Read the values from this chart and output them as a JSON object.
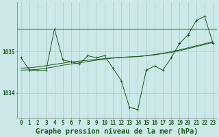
{
  "title": "Graphe pression niveau de la mer (hPa)",
  "background_color": "#cce8e8",
  "grid_color": "#aacccc",
  "line_color": "#1a5c1a",
  "hours": [
    0,
    1,
    2,
    3,
    4,
    5,
    6,
    7,
    8,
    9,
    10,
    11,
    12,
    13,
    14,
    15,
    16,
    17,
    18,
    19,
    20,
    21,
    22,
    23
  ],
  "x_labels": [
    "0",
    "1",
    "2",
    "3",
    "4",
    "5",
    "6",
    "7",
    "8",
    "9",
    "10",
    "11",
    "12",
    "13",
    "14",
    "15",
    "16",
    "17",
    "18",
    "19",
    "20",
    "21",
    "22",
    "23"
  ],
  "main_line": [
    1034.85,
    1034.55,
    1034.55,
    1034.55,
    1035.55,
    1034.8,
    1034.75,
    1034.7,
    1034.9,
    1034.85,
    1034.9,
    1034.6,
    1034.3,
    1033.65,
    1033.6,
    1034.55,
    1034.65,
    1034.55,
    1034.85,
    1035.2,
    1035.4,
    1035.75,
    1035.85,
    1035.2
  ],
  "trend_line1": [
    1034.55,
    1034.56,
    1034.57,
    1034.6,
    1034.63,
    1034.67,
    1034.7,
    1034.73,
    1034.76,
    1034.79,
    1034.82,
    1034.84,
    1034.86,
    1034.87,
    1034.88,
    1034.9,
    1034.92,
    1034.95,
    1034.98,
    1035.02,
    1035.07,
    1035.12,
    1035.17,
    1035.22
  ],
  "trend_line2": [
    1034.6,
    1034.61,
    1034.63,
    1034.66,
    1034.69,
    1034.72,
    1034.75,
    1034.77,
    1034.79,
    1034.81,
    1034.83,
    1034.85,
    1034.86,
    1034.87,
    1034.88,
    1034.9,
    1034.93,
    1034.96,
    1035.0,
    1035.04,
    1035.09,
    1035.14,
    1035.19,
    1035.24
  ],
  "hline_y": 1035.55,
  "ylim_min": 1033.4,
  "ylim_max": 1036.2,
  "yticks": [
    1034,
    1035
  ],
  "title_fontsize": 7.5,
  "tick_fontsize": 5.5
}
